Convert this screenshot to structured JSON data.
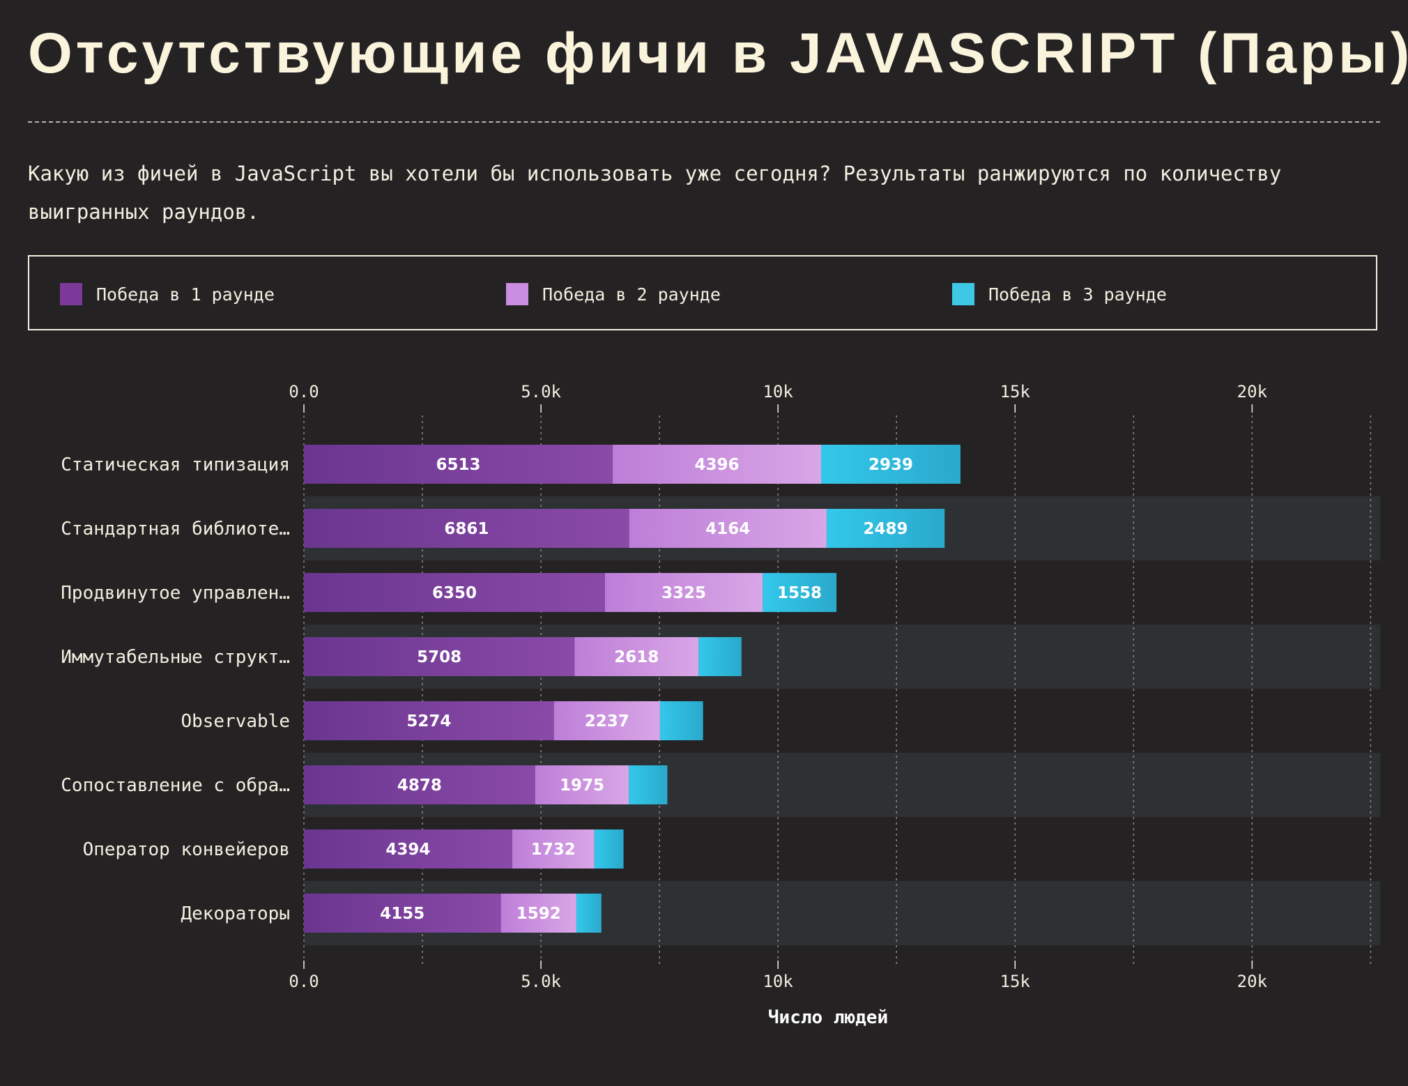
{
  "header": {
    "title": "Отсутствующие фичи в JAVASCRIPT (Пары)",
    "subtitle": "Какую из фичей в JavaScript вы хотели бы использовать уже сегодня? Результаты ранжируются по количеству выигранных раундов."
  },
  "legend": {
    "items": [
      {
        "label": "Победа в 1 раунде",
        "color": "#7b3a9a"
      },
      {
        "label": "Победа в 2 раунде",
        "color": "#c98ee0"
      },
      {
        "label": "Победа в 3 раунде",
        "color": "#3fc8e6"
      }
    ]
  },
  "chart_data": {
    "type": "bar",
    "orientation": "horizontal",
    "stacked": true,
    "categories": [
      "Статическая типизация",
      "Стандартная библиоте…",
      "Продвинутое управлен…",
      "Иммутабельные структ…",
      "Observable",
      "Сопоставление с обра…",
      "Оператор конвейеров",
      "Декораторы"
    ],
    "series": [
      {
        "name": "Победа в 1 раунде",
        "color": "#7b3a9a",
        "values": [
          6513,
          6861,
          6350,
          5708,
          5274,
          4878,
          4394,
          4155
        ]
      },
      {
        "name": "Победа в 2 раунде",
        "color": "#c98ee0",
        "values": [
          4396,
          4164,
          3325,
          2618,
          2237,
          1975,
          1732,
          1592
        ]
      },
      {
        "name": "Победа в 3 раунде",
        "color": "#3fc8e6",
        "values": [
          2939,
          2489,
          1558,
          904,
          908,
          813,
          616,
          528
        ]
      }
    ],
    "xlabel": "Число людей",
    "xlim": [
      0,
      22700
    ],
    "xticks": [
      0,
      5000,
      10000,
      15000,
      20000
    ],
    "xtick_labels": [
      "0.0",
      "5.0k",
      "10k",
      "15k",
      "20k"
    ],
    "label_min_value": 1000,
    "grid": true
  }
}
